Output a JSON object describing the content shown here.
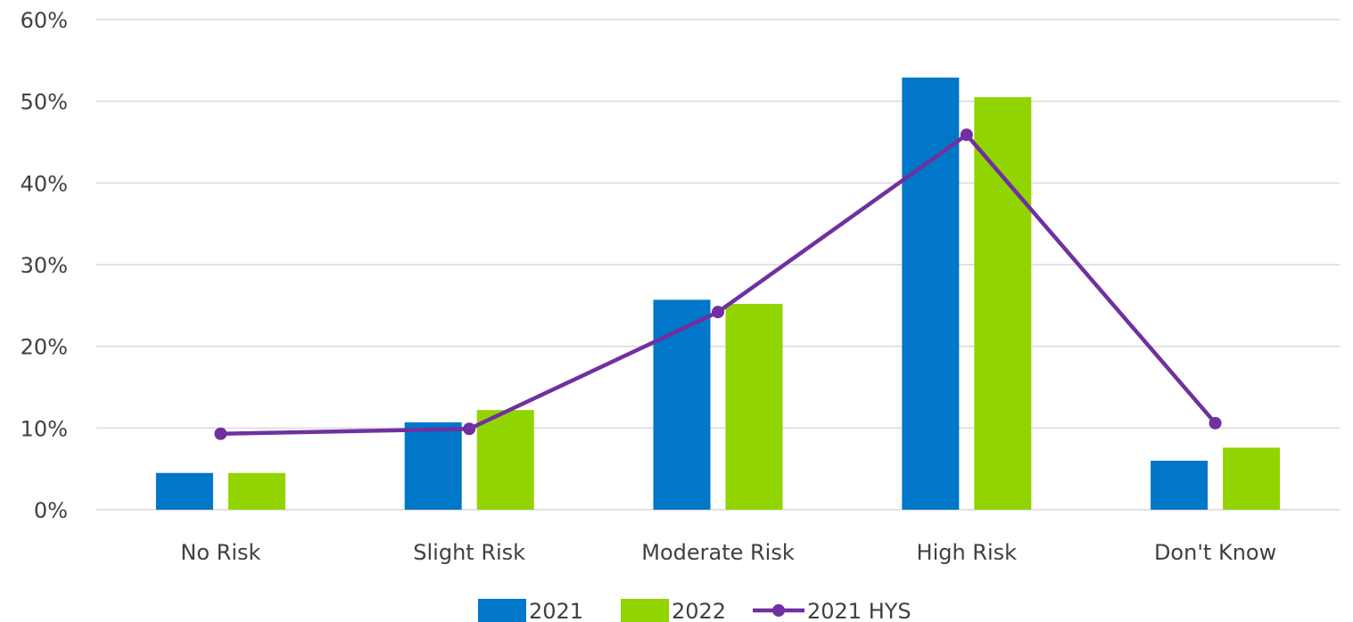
{
  "chart_data": {
    "type": "bar",
    "categories": [
      "No Risk",
      "Slight Risk",
      "Moderate Risk",
      "High Risk",
      "Don't Know"
    ],
    "series": [
      {
        "name": "2021",
        "type": "bar",
        "color": "#0077c8",
        "values": [
          4.5,
          10.7,
          25.7,
          52.9,
          6.0
        ]
      },
      {
        "name": "2022",
        "type": "bar",
        "color": "#92d400",
        "values": [
          4.5,
          12.2,
          25.2,
          50.5,
          7.6
        ]
      },
      {
        "name": "2021 HYS",
        "type": "line",
        "color": "#7030a0",
        "values": [
          9.3,
          9.9,
          24.2,
          45.9,
          10.6
        ]
      }
    ],
    "ylim": [
      0,
      60
    ],
    "yticks": [
      "0%",
      "10%",
      "20%",
      "30%",
      "40%",
      "50%",
      "60%"
    ],
    "ytick_values": [
      0,
      10,
      20,
      30,
      40,
      50,
      60
    ],
    "grid": true,
    "legend_position": "bottom",
    "title": "",
    "xlabel": "",
    "ylabel": ""
  }
}
